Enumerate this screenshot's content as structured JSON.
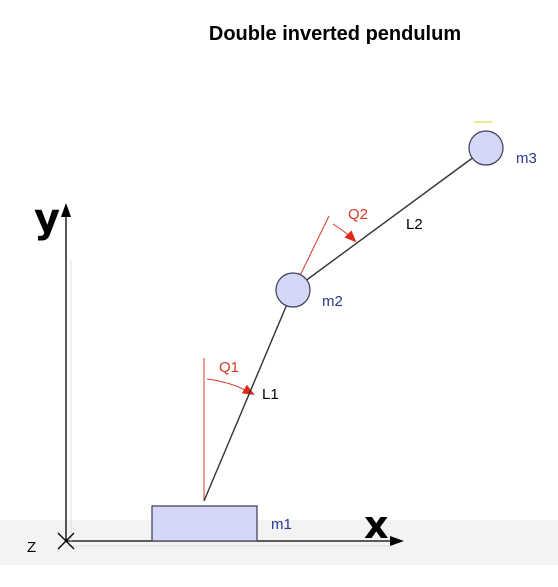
{
  "diagram": {
    "title": "Double inverted pendulum",
    "axes": {
      "y_label": "y",
      "x_label": "x",
      "z_label": "Z"
    },
    "masses": {
      "cart": "m1",
      "joint": "m2",
      "tip": "m3"
    },
    "links": {
      "lower": "L1",
      "upper": "L2"
    },
    "angles": {
      "lower": "Q1",
      "upper": "Q2"
    },
    "colors": {
      "mass_fill": "#d4d8f6",
      "mass_stroke": "#3a3a5a",
      "angle": "#d63a2a",
      "mass_label": "#2a3b8f",
      "link": "#333333"
    }
  }
}
